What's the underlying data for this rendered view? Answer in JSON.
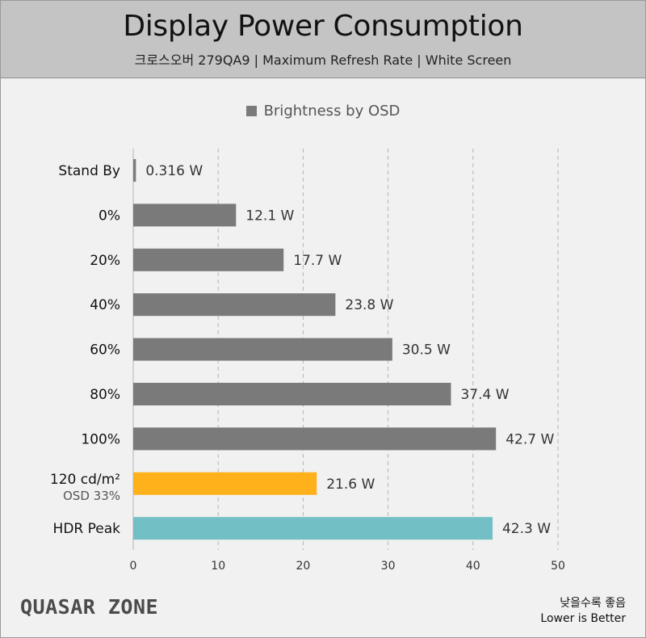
{
  "header": {
    "title": "Display Power Consumption",
    "subtitle": "크로스오버 279QA9  |  Maximum Refresh Rate  |  White Screen"
  },
  "colors": {
    "bar_default": "#7a7a7a",
    "bar_orange": "#ffb11b",
    "bar_teal": "#72bfc5",
    "grid": "#b5b5b5"
  },
  "chart_data": {
    "type": "bar",
    "orientation": "horizontal",
    "legend": {
      "label": "Brightness by OSD",
      "position": "top-center"
    },
    "categories": [
      "Stand By",
      "0%",
      "20%",
      "40%",
      "60%",
      "80%",
      "100%",
      "120 cd/m²",
      "HDR Peak"
    ],
    "category_sublabels": [
      "",
      "",
      "",
      "",
      "",
      "",
      "",
      "OSD 33%",
      ""
    ],
    "values": [
      0.316,
      12.1,
      17.7,
      23.8,
      30.5,
      37.4,
      42.7,
      21.6,
      42.3
    ],
    "value_labels": [
      "0.316 W",
      "12.1 W",
      "17.7 W",
      "23.8 W",
      "30.5 W",
      "37.4 W",
      "42.7 W",
      "21.6 W",
      "42.3 W"
    ],
    "bar_colors": [
      "#7a7a7a",
      "#7a7a7a",
      "#7a7a7a",
      "#7a7a7a",
      "#7a7a7a",
      "#7a7a7a",
      "#7a7a7a",
      "#ffb11b",
      "#72bfc5"
    ],
    "xlim": [
      0,
      50
    ],
    "xticks": [
      0,
      10,
      20,
      30,
      40,
      50
    ],
    "unit": "W",
    "grid": "vertical dashed"
  },
  "footer": {
    "logo": "QUASAR ZONE",
    "note_line1": "낮을수록 좋음",
    "note_line2": "Lower is Better"
  }
}
